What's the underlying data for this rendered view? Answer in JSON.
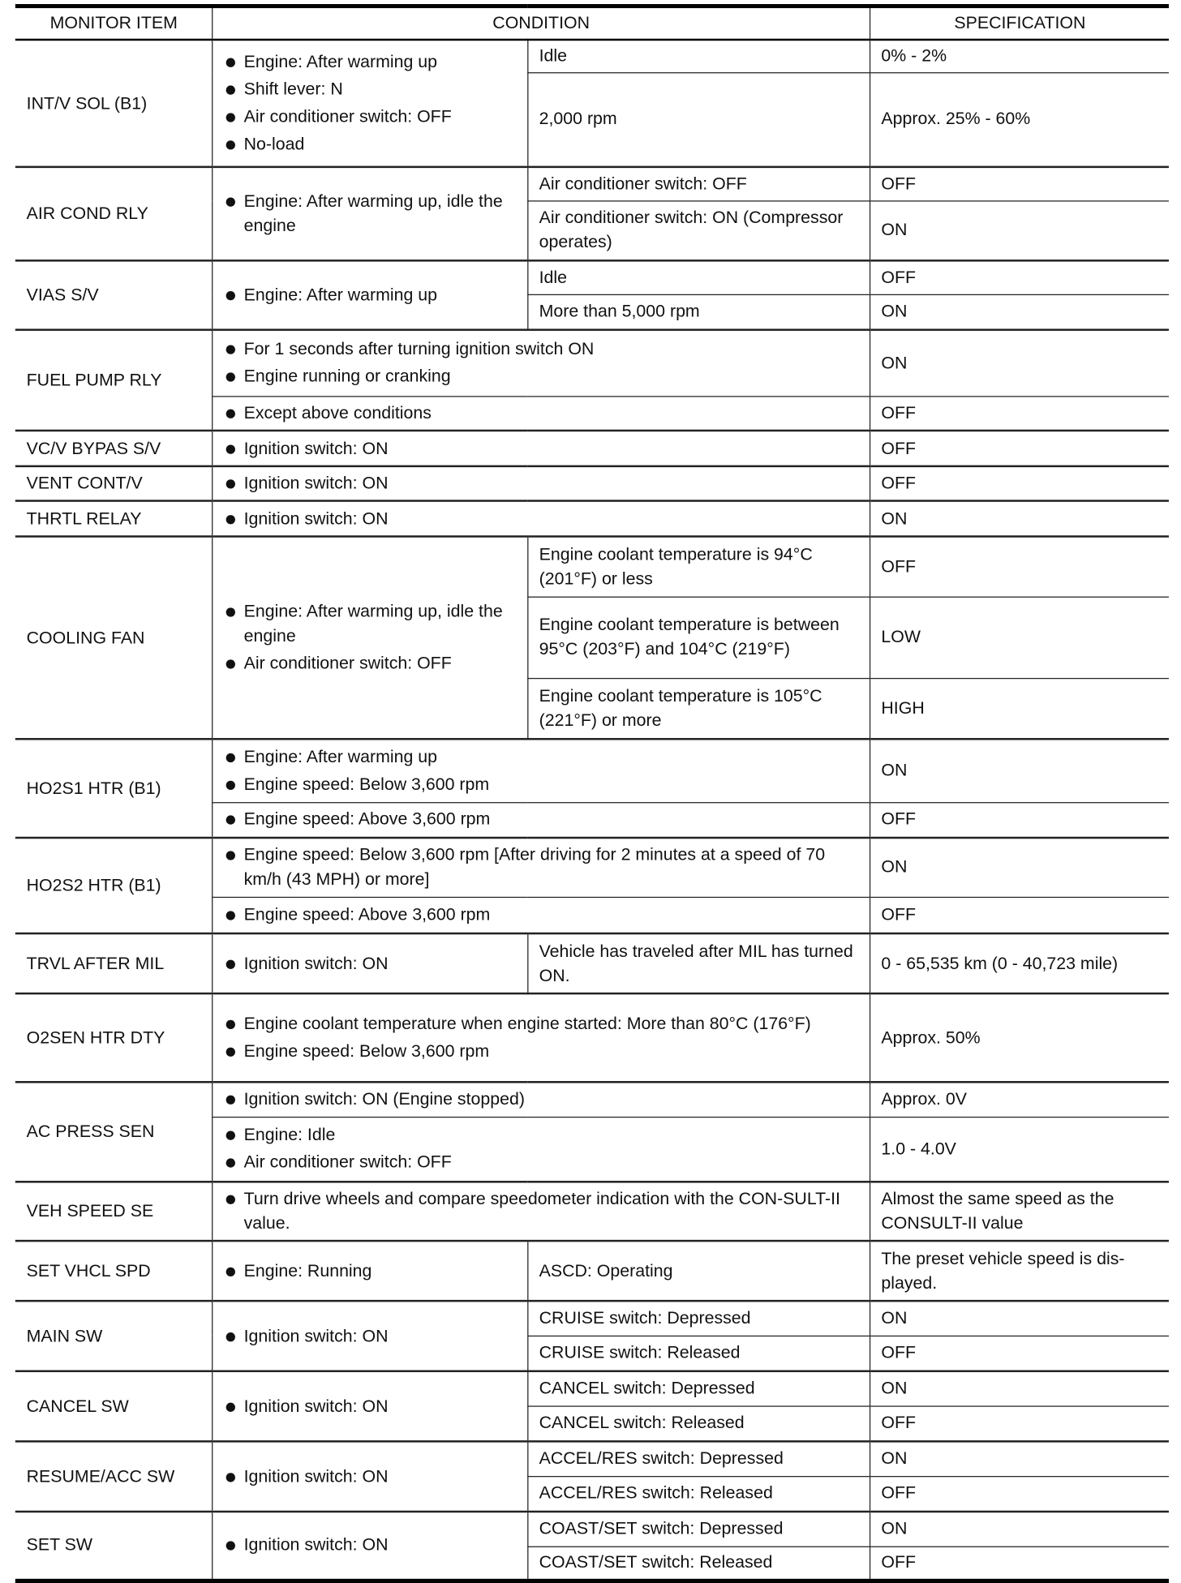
{
  "header": {
    "item": "MONITOR ITEM",
    "condition": "CONDITION",
    "specification": "SPECIFICATION"
  },
  "items": [
    {
      "name": "INT/V SOL (B1)",
      "blocks": [
        {
          "conditions": [
            "Engine: After warming up",
            "Shift lever: N",
            "Air conditioner switch: OFF",
            "No-load"
          ],
          "cases": [
            {
              "condition": "Idle",
              "spec": "0% - 2%"
            },
            {
              "condition": "2,000 rpm",
              "spec": "Approx. 25% - 60%"
            }
          ]
        }
      ]
    },
    {
      "name": "AIR COND RLY",
      "blocks": [
        {
          "conditions": [
            "Engine: After warming up, idle the engine"
          ],
          "cases": [
            {
              "condition": "Air conditioner switch: OFF",
              "spec": "OFF"
            },
            {
              "condition": "Air conditioner switch: ON (Compressor operates)",
              "spec": "ON"
            }
          ]
        }
      ]
    },
    {
      "name": "VIAS S/V",
      "blocks": [
        {
          "conditions": [
            "Engine: After warming up"
          ],
          "cases": [
            {
              "condition": "Idle",
              "spec": "OFF"
            },
            {
              "condition": "More than 5,000 rpm",
              "spec": "ON"
            }
          ]
        }
      ]
    },
    {
      "name": "FUEL PUMP RLY",
      "blocks": [
        {
          "conditions": [
            "For 1 seconds after turning ignition switch ON",
            "Engine running or cranking"
          ],
          "spec": "ON"
        },
        {
          "conditions": [
            "Except above conditions"
          ],
          "spec": "OFF"
        }
      ]
    },
    {
      "name": "VC/V BYPAS S/V",
      "blocks": [
        {
          "conditions": [
            "Ignition switch: ON"
          ],
          "spec": "OFF"
        }
      ]
    },
    {
      "name": "VENT CONT/V",
      "blocks": [
        {
          "conditions": [
            "Ignition switch: ON"
          ],
          "spec": "OFF"
        }
      ]
    },
    {
      "name": "THRTL RELAY",
      "blocks": [
        {
          "conditions": [
            "Ignition switch: ON"
          ],
          "spec": "ON"
        }
      ]
    },
    {
      "name": "COOLING FAN",
      "blocks": [
        {
          "conditions": [
            "Engine: After warming up, idle the engine",
            "Air conditioner switch: OFF"
          ],
          "cases": [
            {
              "condition": "Engine coolant temperature is 94°C (201°F) or less",
              "spec": "OFF"
            },
            {
              "condition": "Engine coolant temperature is between 95°C (203°F) and 104°C (219°F)",
              "spec": "LOW"
            },
            {
              "condition": "Engine coolant temperature is 105°C (221°F) or more",
              "spec": "HIGH"
            }
          ]
        }
      ]
    },
    {
      "name": "HO2S1 HTR (B1)",
      "blocks": [
        {
          "conditions": [
            "Engine: After warming up",
            "Engine speed: Below 3,600 rpm"
          ],
          "spec": "ON"
        },
        {
          "conditions": [
            "Engine speed: Above 3,600 rpm"
          ],
          "spec": "OFF"
        }
      ]
    },
    {
      "name": "HO2S2 HTR (B1)",
      "blocks": [
        {
          "conditions": [
            "Engine speed: Below 3,600 rpm [After driving for 2 minutes at a speed of 70 km/h (43 MPH) or more]"
          ],
          "spec": "ON"
        },
        {
          "conditions": [
            "Engine speed: Above 3,600 rpm"
          ],
          "spec": "OFF"
        }
      ]
    },
    {
      "name": "TRVL AFTER MIL",
      "blocks": [
        {
          "conditions": [
            "Ignition switch: ON"
          ],
          "cases": [
            {
              "condition": "Vehicle has traveled after MIL has turned ON.",
              "spec": "0 - 65,535 km (0 - 40,723 mile)"
            }
          ]
        }
      ]
    },
    {
      "name": "O2SEN HTR DTY",
      "blocks": [
        {
          "conditions": [
            "Engine coolant temperature when engine started: More than 80°C (176°F)",
            "Engine speed: Below 3,600 rpm"
          ],
          "spec": "Approx. 50%"
        }
      ]
    },
    {
      "name": "AC PRESS SEN",
      "blocks": [
        {
          "conditions": [
            "Ignition switch: ON (Engine stopped)"
          ],
          "spec": "Approx. 0V"
        },
        {
          "conditions": [
            "Engine: Idle",
            "Air conditioner switch: OFF"
          ],
          "spec": "1.0 - 4.0V"
        }
      ]
    },
    {
      "name": "VEH SPEED SE",
      "blocks": [
        {
          "conditions": [
            "Turn drive wheels and compare speedometer indication with the CON-SULT-II value."
          ],
          "spec": "Almost the same speed as the CONSULT-II value"
        }
      ]
    },
    {
      "name": "SET VHCL SPD",
      "blocks": [
        {
          "conditions": [
            "Engine: Running"
          ],
          "cases": [
            {
              "condition": "ASCD: Operating",
              "spec": "The preset vehicle speed is dis-played."
            }
          ]
        }
      ]
    },
    {
      "name": "MAIN SW",
      "blocks": [
        {
          "conditions": [
            "Ignition switch: ON"
          ],
          "cases": [
            {
              "condition": "CRUISE switch: Depressed",
              "spec": "ON"
            },
            {
              "condition": "CRUISE switch: Released",
              "spec": "OFF"
            }
          ]
        }
      ]
    },
    {
      "name": "CANCEL SW",
      "blocks": [
        {
          "conditions": [
            "Ignition switch: ON"
          ],
          "cases": [
            {
              "condition": "CANCEL switch: Depressed",
              "spec": "ON"
            },
            {
              "condition": "CANCEL switch: Released",
              "spec": "OFF"
            }
          ]
        }
      ]
    },
    {
      "name": "RESUME/ACC SW",
      "blocks": [
        {
          "conditions": [
            "Ignition switch: ON"
          ],
          "cases": [
            {
              "condition": "ACCEL/RES switch: Depressed",
              "spec": "ON"
            },
            {
              "condition": "ACCEL/RES switch: Released",
              "spec": "OFF"
            }
          ]
        }
      ]
    },
    {
      "name": "SET SW",
      "blocks": [
        {
          "conditions": [
            "Ignition switch: ON"
          ],
          "cases": [
            {
              "condition": "COAST/SET switch: Depressed",
              "spec": "ON"
            },
            {
              "condition": "COAST/SET switch: Released",
              "spec": "OFF"
            }
          ]
        }
      ]
    }
  ]
}
